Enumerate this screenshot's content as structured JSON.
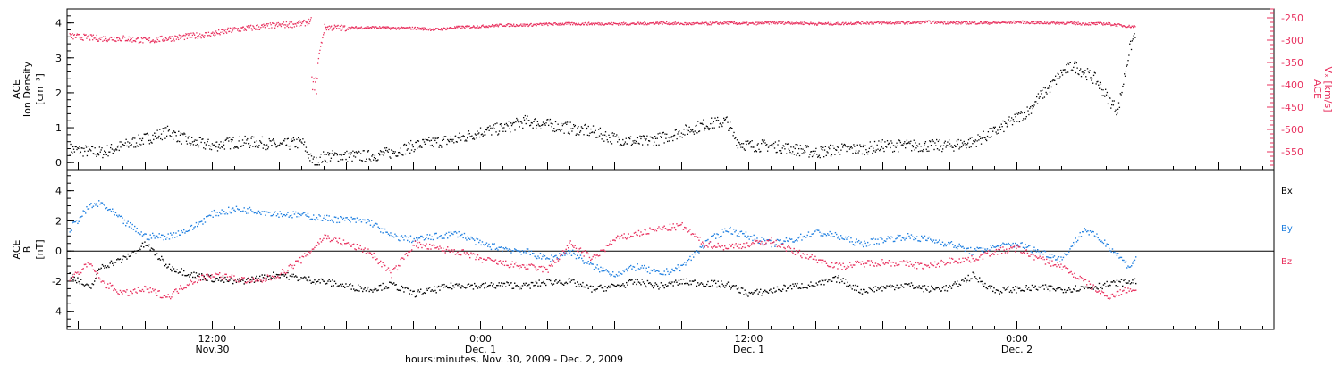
{
  "colors": {
    "ink": "#000000",
    "vx": "#e8305e",
    "by": "#1f7fe0",
    "bz": "#e8305e",
    "bx": "#000000"
  },
  "xaxis": {
    "label": "hours:minutes, Nov. 30, 2009 - Dec. 2, 2009",
    "range_hours": [
      -6.5,
      47.5
    ],
    "ticks": [
      {
        "hour": 0,
        "time": "12:00",
        "date": "Nov.30"
      },
      {
        "hour": 12,
        "time": "0:00",
        "date": "Dec. 1"
      },
      {
        "hour": 24,
        "time": "12:00",
        "date": "Dec. 1"
      },
      {
        "hour": 36,
        "time": "0:00",
        "date": "Dec. 2"
      }
    ]
  },
  "chart_data": [
    {
      "type": "scatter",
      "panel": "top",
      "ylabel": [
        "ACE",
        "Ion Density",
        "[cm⁻³]"
      ],
      "ylim": [
        -0.2,
        4.4
      ],
      "yticks": [
        0,
        1,
        2,
        3,
        4
      ],
      "series": [
        {
          "name": "Ion Density",
          "color_key": "ink",
          "x": [
            -6.4,
            -5,
            -4,
            -3,
            -2,
            -1,
            0,
            1,
            2,
            3,
            4,
            4.4,
            4.6,
            5,
            6,
            7,
            8,
            9,
            10,
            11,
            12,
            13,
            14,
            15,
            16,
            17,
            18,
            19,
            20,
            21,
            22,
            23,
            23.3,
            23.5,
            24,
            25,
            26,
            27,
            28,
            29,
            30,
            31,
            32,
            33,
            34,
            35,
            35.5,
            36,
            36.5,
            37,
            37.5,
            38,
            38.5,
            39,
            39.5,
            40,
            40.5,
            41,
            41.3
          ],
          "y": [
            0.4,
            0.3,
            0.5,
            0.7,
            0.9,
            0.6,
            0.5,
            0.6,
            0.6,
            0.5,
            0.6,
            0.1,
            0.0,
            0.2,
            0.2,
            0.2,
            0.3,
            0.5,
            0.6,
            0.7,
            0.9,
            1.0,
            1.2,
            1.1,
            1.0,
            0.9,
            0.7,
            0.6,
            0.7,
            0.9,
            1.1,
            1.2,
            0.8,
            0.6,
            0.5,
            0.5,
            0.4,
            0.3,
            0.4,
            0.4,
            0.5,
            0.5,
            0.5,
            0.5,
            0.6,
            0.9,
            1.1,
            1.3,
            1.5,
            1.9,
            2.2,
            2.6,
            2.8,
            2.6,
            2.4,
            1.9,
            1.5,
            3.2,
            3.8
          ]
        }
      ],
      "right_axis": {
        "ylabel": [
          "ACE",
          "Vₓ [km/s]"
        ],
        "ylim": [
          -590,
          -230
        ],
        "yticks": [
          -550,
          -500,
          -450,
          -400,
          -350,
          -300,
          -250
        ],
        "series": [
          {
            "name": "Vx",
            "color_key": "vx",
            "x": [
              -6.4,
              -5,
              -4,
              -3,
              -2,
              -1,
              0,
              1,
              2,
              3,
              4,
              4.4,
              4.5,
              5,
              6,
              7,
              8,
              9,
              10,
              11,
              12,
              13,
              14,
              15,
              16,
              17,
              18,
              19,
              20,
              21,
              22,
              23,
              24,
              25,
              26,
              27,
              28,
              29,
              30,
              31,
              32,
              33,
              34,
              35,
              36,
              37,
              38,
              39,
              40,
              41,
              41.3
            ],
            "y": [
              -290,
              -295,
              -295,
              -300,
              -295,
              -290,
              -285,
              -275,
              -270,
              -265,
              -262,
              -255,
              -395,
              -270,
              -272,
              -270,
              -272,
              -272,
              -275,
              -270,
              -268,
              -265,
              -265,
              -263,
              -262,
              -262,
              -262,
              -262,
              -260,
              -262,
              -262,
              -260,
              -262,
              -260,
              -260,
              -262,
              -262,
              -260,
              -260,
              -260,
              -258,
              -260,
              -260,
              -260,
              -258,
              -260,
              -260,
              -262,
              -262,
              -268,
              -268
            ]
          }
        ]
      }
    },
    {
      "type": "line",
      "panel": "bottom",
      "ylabel": [
        "ACE",
        "B",
        "[nT]"
      ],
      "ylim": [
        -5.2,
        5.4
      ],
      "yticks": [
        -4,
        -2,
        0,
        2,
        4
      ],
      "series": [
        {
          "name": "Bx",
          "color_key": "bx",
          "x": [
            -6.4,
            -5.5,
            -5,
            -4,
            -3,
            -2,
            -1,
            0,
            1,
            2,
            3,
            4,
            5,
            6,
            7,
            8,
            9,
            10,
            11,
            12,
            13,
            14,
            15,
            16,
            17,
            18,
            19,
            20,
            21,
            22,
            23,
            24,
            25,
            26,
            27,
            28,
            29,
            30,
            31,
            32,
            33,
            34,
            35,
            36,
            37,
            38,
            39,
            40,
            41,
            41.3
          ],
          "y": [
            -1.5,
            -2.5,
            -1,
            -0.5,
            0.5,
            -1,
            -1.5,
            -1.8,
            -2,
            -1.8,
            -1.5,
            -1.8,
            -2,
            -2.3,
            -2.5,
            -2.2,
            -2.8,
            -2.5,
            -2.2,
            -2.3,
            -2.2,
            -2.3,
            -2.0,
            -2.0,
            -2.5,
            -2.3,
            -2.0,
            -2.3,
            -2.0,
            -2.1,
            -2.2,
            -2.8,
            -2.6,
            -2.3,
            -2.2,
            -1.8,
            -2.6,
            -2.4,
            -2.2,
            -2.5,
            -2.4,
            -1.6,
            -2.6,
            -2.5,
            -2.4,
            -2.5,
            -2.4,
            -2.2,
            -2.0,
            -2.0
          ]
        },
        {
          "name": "By",
          "color_key": "by",
          "x": [
            -6.4,
            -5.5,
            -5,
            -4,
            -3,
            -2,
            -1,
            0,
            1,
            2,
            3,
            4,
            5,
            6,
            7,
            8,
            9,
            10,
            11,
            12,
            13,
            14,
            15,
            16,
            17,
            18,
            19,
            20,
            21,
            22,
            23,
            24,
            25,
            26,
            27,
            28,
            29,
            30,
            31,
            32,
            33,
            34,
            35,
            36,
            37,
            38,
            39,
            40,
            41,
            41.3
          ],
          "y": [
            1.5,
            3.0,
            3.2,
            2.0,
            1.0,
            1.0,
            1.5,
            2.5,
            2.8,
            2.7,
            2.5,
            2.4,
            2.2,
            2.1,
            2.0,
            1.0,
            0.8,
            1.0,
            1.2,
            0.5,
            0.2,
            0.0,
            -0.5,
            0.0,
            -1.0,
            -1.5,
            -1.0,
            -1.5,
            -1.0,
            0.5,
            1.5,
            1.0,
            0.5,
            0.8,
            1.3,
            1.0,
            0.5,
            0.8,
            1.0,
            0.8,
            0.5,
            0.0,
            0.3,
            0.5,
            0.0,
            -0.5,
            1.5,
            0.5,
            -1.0,
            -0.5
          ]
        },
        {
          "name": "Bz",
          "color_key": "bz",
          "x": [
            -6.4,
            -5.5,
            -5,
            -4,
            -3,
            -2,
            -1,
            0,
            1,
            2,
            3,
            4,
            5,
            6,
            7,
            8,
            9,
            10,
            11,
            12,
            13,
            14,
            15,
            16,
            17,
            18,
            19,
            20,
            21,
            22,
            23,
            24,
            25,
            26,
            27,
            28,
            29,
            30,
            31,
            32,
            33,
            34,
            35,
            36,
            37,
            38,
            39,
            40,
            41,
            41.3
          ],
          "y": [
            -1.8,
            -0.8,
            -2.0,
            -2.8,
            -2.5,
            -3.0,
            -2.0,
            -1.5,
            -1.8,
            -2.0,
            -1.5,
            -0.5,
            1.0,
            0.5,
            0.0,
            -1.5,
            0.5,
            0.2,
            0.0,
            -0.5,
            -0.8,
            -1.0,
            -1.2,
            0.5,
            -0.5,
            0.8,
            1.2,
            1.5,
            1.7,
            0.5,
            0.3,
            0.5,
            0.7,
            0.0,
            -0.5,
            -1.0,
            -0.8,
            -0.7,
            -0.8,
            -1.0,
            -0.6,
            -0.5,
            0.0,
            0.2,
            -0.5,
            -1.0,
            -2.0,
            -3.0,
            -2.5,
            -2.5
          ]
        }
      ],
      "legend_placement": "right",
      "zero_line": true
    }
  ]
}
